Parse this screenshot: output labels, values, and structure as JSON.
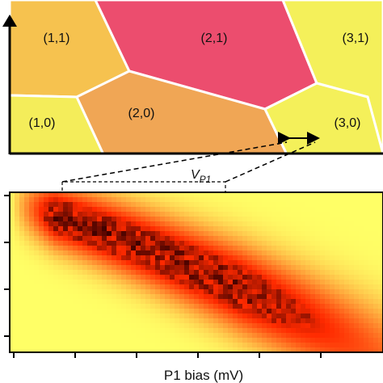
{
  "chart_data": [
    {
      "type": "diagram",
      "regions": [
        {
          "label": "(1,1)",
          "color": "#f6c24f"
        },
        {
          "label": "(2,1)",
          "color": "#ec4d6e"
        },
        {
          "label": "(3,1)",
          "color": "#f4f05a"
        },
        {
          "label": "(1,0)",
          "color": "#f4ed5a"
        },
        {
          "label": "(2,0)",
          "color": "#f0a655"
        },
        {
          "label": "(3,0)",
          "color": "#f4f05a"
        }
      ],
      "annotation": {
        "symbol": "V",
        "subscript": "P1"
      }
    },
    {
      "type": "heatmap",
      "xlabel": "P1 bias (mV)",
      "colormap": [
        "#ffff66",
        "#ff2a00",
        "#3b0000"
      ],
      "x_ticks_count": 6,
      "y_ticks_count": 4,
      "grid": false
    }
  ]
}
